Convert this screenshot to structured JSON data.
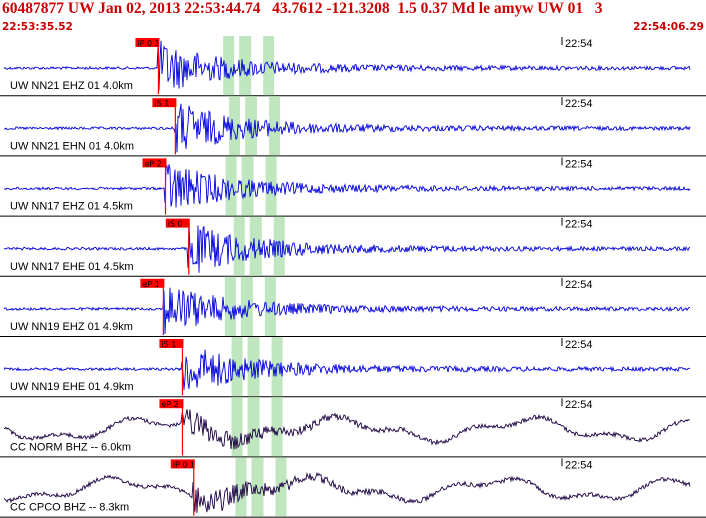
{
  "header": {
    "title": "60487877 UW Jan 02, 2013 22:53:44.74   43.7612 -121.3208  1.5 0.37 Md le amyw UW 01   3",
    "start_time": "22:53:35.52",
    "end_time": "22:54:06.29"
  },
  "colors": {
    "waveform_blue": "#0000dd",
    "waveform_dark": "#1a0040",
    "pick_red": "#ff0000",
    "window_green": "#bfe6bf",
    "header_red": "#cc0000"
  },
  "panels": [
    {
      "label": "UW NN21 EHZ 01 4.0km",
      "tick": "22:54",
      "pick": "iP 0 1",
      "pick_frac": 0.223
    },
    {
      "label": "UW NN21 EHN 01 4.0km",
      "tick": "22:54",
      "pick": "iS 1",
      "pick_frac": 0.247
    },
    {
      "label": "UW NN17 EHZ 01 4.5km",
      "tick": "22:54",
      "pick": "eP 2",
      "pick_frac": 0.233
    },
    {
      "label": "UW NN17 EHE 01 4.5km",
      "tick": "22:54",
      "pick": "iS 0",
      "pick_frac": 0.266
    },
    {
      "label": "UW NN19 EHZ 01 4.9km",
      "tick": "22:54",
      "pick": "eP 1",
      "pick_frac": 0.23
    },
    {
      "label": "UW NN19 EHE 01 4.9km",
      "tick": "22:54",
      "pick": "iS 1",
      "pick_frac": 0.257
    },
    {
      "label": "CC NORM BHZ -- 6.0km",
      "tick": "22:54",
      "pick": "eP 2",
      "pick_frac": 0.257
    },
    {
      "label": "CC CPCO BHZ -- 8.3km",
      "tick": "22:54",
      "pick": "iP 0 1",
      "pick_frac": 0.273
    }
  ]
}
